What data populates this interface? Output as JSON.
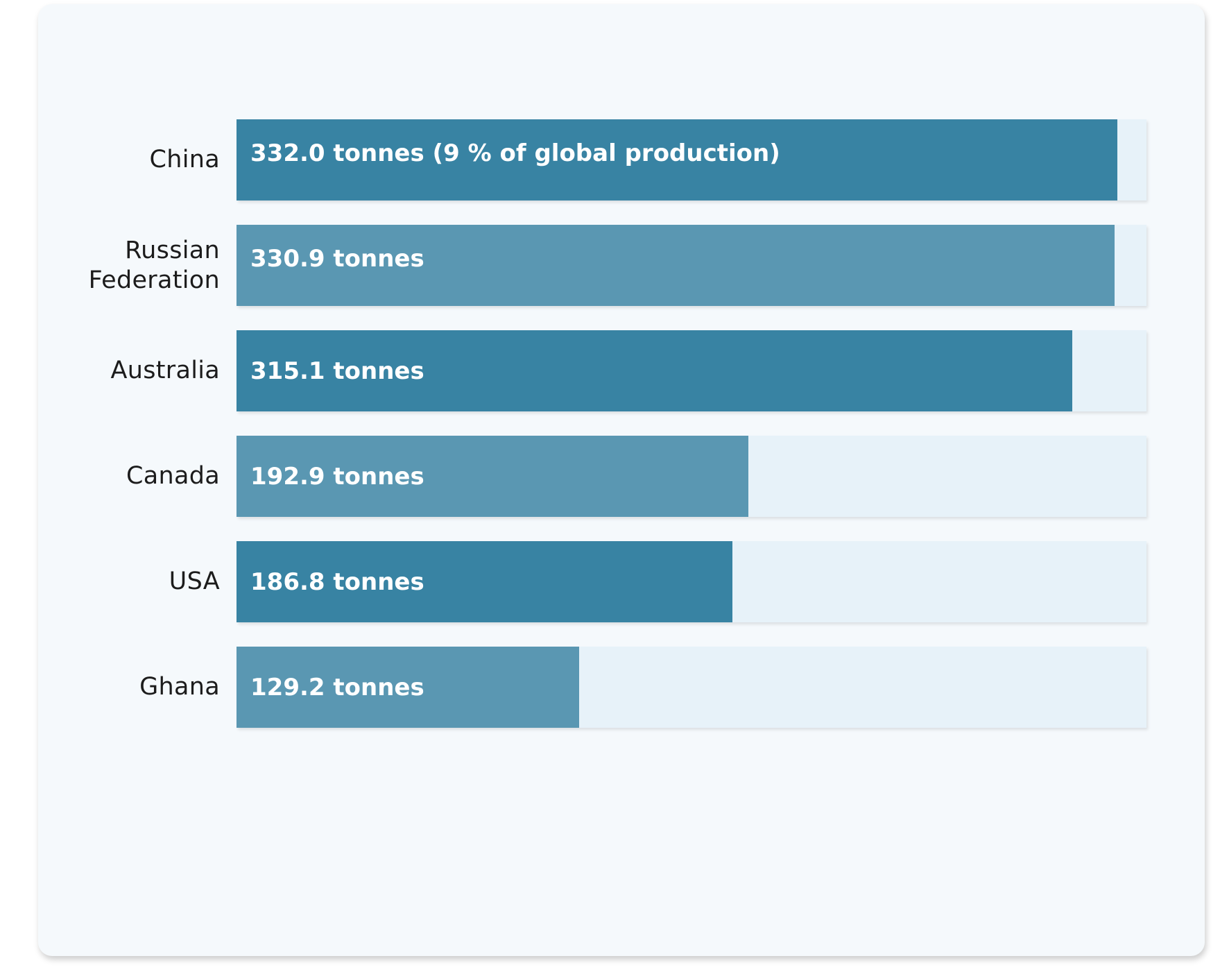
{
  "chart_data": {
    "type": "bar",
    "orientation": "horizontal",
    "categories": [
      "China",
      "Russian Federation",
      "Australia",
      "Canada",
      "USA",
      "Ghana"
    ],
    "values": [
      332.0,
      330.9,
      315.1,
      192.9,
      186.8,
      129.2
    ],
    "units": "tonnes",
    "data_labels": [
      "332.0 tonnes (9 % of global production)",
      "330.9 tonnes",
      "315.1 tonnes",
      "192.9 tonnes",
      "186.8 tonnes",
      "129.2 tonnes"
    ],
    "xlim": [
      0,
      343
    ],
    "grid": false,
    "legend": false,
    "colors": {
      "bar_primary": "#3883a3",
      "bar_secondary": "#5a97b2",
      "track": "#e7f2f9",
      "card_background": "#f5f9fc",
      "category_text": "#1c1c1c",
      "value_text": "#ffffff"
    },
    "bar_color_pattern": [
      "bar_primary",
      "bar_secondary",
      "bar_primary",
      "bar_secondary",
      "bar_primary",
      "bar_secondary"
    ]
  }
}
